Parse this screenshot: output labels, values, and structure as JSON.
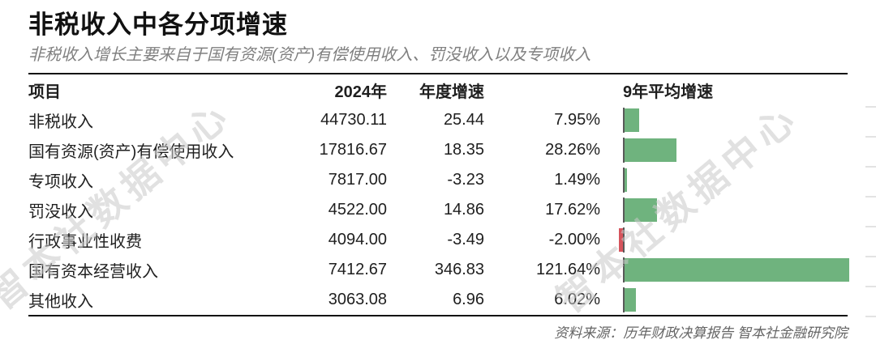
{
  "page": {
    "title": "非税收入中各分项增速",
    "subtitle": "非税收入增长主要来自于国有资源(资产)有偿使用收入、罚没收入以及专项收入",
    "source": "资料来源：历年财政决算报告 智本社金融研究院",
    "watermark": "智本社数据中心"
  },
  "table": {
    "headers": {
      "item": "项目",
      "y2024": "2024年",
      "annual_growth": "年度增速",
      "avg9y_growth": "9年平均增速"
    },
    "rows": [
      {
        "item": "非税收入",
        "y2024": "44730.11",
        "annual_growth": "25.44",
        "avg9y_growth": "7.95%"
      },
      {
        "item": "国有资源(资产)有偿使用收入",
        "y2024": "17816.67",
        "annual_growth": "18.35",
        "avg9y_growth": "28.26%"
      },
      {
        "item": "专项收入",
        "y2024": "7817.00",
        "annual_growth": "-3.23",
        "avg9y_growth": "1.49%"
      },
      {
        "item": "罚没收入",
        "y2024": "4522.00",
        "annual_growth": "14.86",
        "avg9y_growth": "17.62%"
      },
      {
        "item": "行政事业性收费",
        "y2024": "4094.00",
        "annual_growth": "-3.49",
        "avg9y_growth": "-2.00%"
      },
      {
        "item": "国有资本经营收入",
        "y2024": "7412.67",
        "annual_growth": "346.83",
        "avg9y_growth": "121.64%"
      },
      {
        "item": "其他收入",
        "y2024": "3063.08",
        "annual_growth": "6.96",
        "avg9y_growth": "6.02%"
      }
    ]
  },
  "chart_data": {
    "type": "bar",
    "orientation": "horizontal",
    "title": "非税收入中各分项增速",
    "categories": [
      "非税收入",
      "国有资源(资产)有偿使用收入",
      "专项收入",
      "罚没收入",
      "行政事业性收费",
      "国有资本经营收入",
      "其他收入"
    ],
    "series": [
      {
        "name": "2024年",
        "values": [
          44730.11,
          17816.67,
          7817.0,
          4522.0,
          4094.0,
          7412.67,
          3063.08
        ]
      },
      {
        "name": "年度增速",
        "values": [
          25.44,
          18.35,
          -3.23,
          14.86,
          -3.49,
          346.83,
          6.96
        ]
      },
      {
        "name": "9年平均增速(%)",
        "values": [
          7.95,
          28.26,
          1.49,
          17.62,
          -2.0,
          121.64,
          6.02
        ]
      }
    ],
    "bar_series": "9年平均增速(%)",
    "xlim": [
      -5,
      125
    ],
    "grid": false,
    "legend": "none",
    "colors": {
      "positive": "#6FB37E",
      "negative": "#D5545C",
      "baseline": "#595959"
    }
  }
}
